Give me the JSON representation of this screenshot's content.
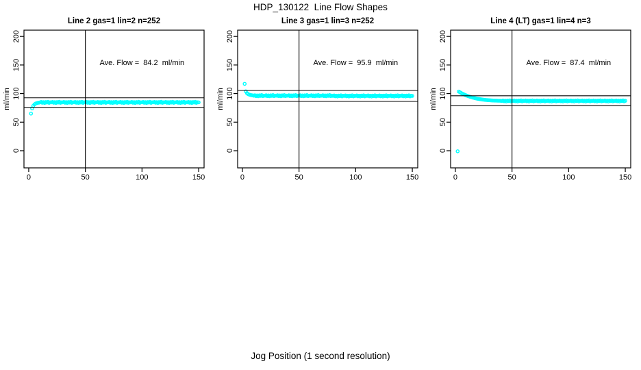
{
  "figure": {
    "title": "HDP_130122  Line Flow Shapes",
    "xlabel": "Jog Position (1 second resolution)",
    "background_color": "#FFFFFF",
    "axis_color": "#000000",
    "point_color": "#00FFFF",
    "text_color": "#000000"
  },
  "chart_data": [
    {
      "type": "scatter",
      "title": "Line 2 gas=1 lin=2 n=252",
      "ylabel": "ml/min",
      "annotation": "Ave. Flow =  84.2  ml/min",
      "ave_flow_ml_min": 84.2,
      "n_points_label": 252,
      "x_ticks": [
        0,
        50,
        100,
        150
      ],
      "y_ticks": [
        0,
        50,
        100,
        150,
        200
      ],
      "xlim": [
        -4.2,
        154.8
      ],
      "ylim": [
        -30,
        211
      ],
      "grid": false,
      "legend": false,
      "vline_x": 50,
      "hlines_y": [
        92.6,
        75.8
      ],
      "annotation_xy": [
        100,
        150
      ],
      "points": {
        "x_start": 2,
        "x_step": 1,
        "y": [
          65,
          74,
          78.5,
          81,
          82.5,
          83.3,
          83.8,
          84.1,
          84.6,
          85.4,
          83.9,
          85,
          83.6,
          85.2,
          84.3,
          85.6,
          83.8,
          84.8,
          84.6,
          85.4,
          83.9,
          85,
          83.6,
          85.2,
          84.3,
          85.6,
          83.8,
          84.8,
          84.6,
          85.4,
          83.9,
          85,
          83.6,
          85.2,
          84.3,
          85.6,
          83.8,
          84.8,
          84.6,
          85.4,
          83.9,
          85,
          83.6,
          85.2,
          84.3,
          85.6,
          83.8,
          84.8,
          84.6,
          85.4,
          83.9,
          85,
          83.6,
          85.2,
          84.3,
          85.6,
          83.8,
          84.8,
          84.6,
          85.4,
          83.9,
          85,
          83.6,
          85.2,
          84.3,
          85.6,
          83.8,
          84.8,
          84.6,
          85.4,
          83.9,
          85,
          83.6,
          85.2,
          84.3,
          85.6,
          83.8,
          84.8,
          84.6,
          85.4,
          83.9,
          85,
          83.6,
          85.2,
          84.3,
          85.6,
          83.8,
          84.8,
          84.6,
          85.4,
          83.9,
          85,
          83.6,
          85.2,
          84.3,
          85.6,
          83.8,
          84.8,
          84.6,
          85.4,
          83.9,
          85,
          83.6,
          85.2,
          84.3,
          85.6,
          83.8,
          84.8,
          84.6,
          85.4,
          83.9,
          85,
          83.6,
          85.2,
          84.3,
          85.6,
          83.8,
          84.8,
          84.6,
          85.4,
          83.9,
          85,
          83.6,
          85.2,
          84.3,
          85.6,
          83.8,
          84.8,
          84.6,
          85.4,
          83.9,
          85,
          83.6,
          85.2,
          84.3,
          85.6,
          83.8,
          84.8,
          84.6,
          85.4,
          83.9,
          85,
          83.6,
          85.2,
          84.3,
          85.6,
          83.8,
          84.8,
          84.6
        ]
      }
    },
    {
      "type": "scatter",
      "title": "Line 3 gas=1 lin=3 n=252",
      "ylabel": "ml/min",
      "annotation": "Ave. Flow =  95.9  ml/min",
      "ave_flow_ml_min": 95.9,
      "n_points_label": 252,
      "x_ticks": [
        0,
        50,
        100,
        150
      ],
      "y_ticks": [
        0,
        50,
        100,
        150,
        200
      ],
      "xlim": [
        -4.2,
        154.8
      ],
      "ylim": [
        -30,
        211
      ],
      "grid": false,
      "legend": false,
      "vline_x": 50,
      "hlines_y": [
        105.5,
        86.3
      ],
      "annotation_xy": [
        100,
        150
      ],
      "points": {
        "x_start": 2,
        "x_step": 1,
        "y": [
          117,
          104,
          100.8,
          99.2,
          98.2,
          97.6,
          97.2,
          96.9,
          96.3,
          97.1,
          95.6,
          96.7,
          95.3,
          96.9,
          96,
          97.3,
          95.5,
          96.5,
          96.3,
          97.1,
          95.6,
          96.7,
          95.3,
          96.9,
          96,
          97.3,
          95.5,
          96.5,
          96.3,
          97.1,
          95.6,
          96.7,
          95.3,
          96.9,
          96,
          97.3,
          95.5,
          96.5,
          96.3,
          97.1,
          95.6,
          96.7,
          95.3,
          96.9,
          96,
          97.3,
          95.5,
          96.5,
          96.3,
          97.1,
          95.6,
          96.7,
          95.3,
          96.9,
          96,
          97.3,
          95.5,
          96.5,
          96.3,
          97.1,
          95.6,
          96.7,
          95.3,
          96.9,
          96,
          97.3,
          95.5,
          96.5,
          96.3,
          97.1,
          95.6,
          96.7,
          95.3,
          96.9,
          96,
          97.3,
          95.5,
          96.5,
          95.9,
          96.7,
          95.2,
          96.3,
          94.9,
          96.5,
          95.6,
          96.9,
          95.1,
          96.1,
          95.9,
          96.7,
          95.2,
          96.3,
          94.9,
          96.5,
          95.6,
          96.9,
          95.1,
          96.1,
          95.9,
          96.7,
          95.2,
          96.3,
          94.9,
          96.5,
          95.6,
          96.9,
          95.1,
          96.1,
          95.9,
          96.7,
          95.2,
          96.3,
          94.9,
          96.5,
          95.6,
          96.9,
          95.1,
          96.1,
          95.9,
          96.7,
          95.2,
          96.3,
          94.9,
          96.5,
          95.6,
          96.9,
          95.1,
          96.1,
          95.9,
          96.7,
          95.2,
          96.3,
          94.9,
          96.5,
          95.6,
          96.9,
          95.1,
          96.1,
          95.9,
          96.7,
          95.2,
          96.3,
          94.9,
          96.5,
          95.6,
          96.9,
          95.1,
          96.1,
          95.9
        ]
      }
    },
    {
      "type": "scatter",
      "title": "Line 4 (LT) gas=1 lin=4 n=3",
      "ylabel": "ml/min",
      "annotation": "Ave. Flow =  87.4  ml/min",
      "ave_flow_ml_min": 87.4,
      "n_points_label": 3,
      "x_ticks": [
        0,
        50,
        100,
        150
      ],
      "y_ticks": [
        0,
        50,
        100,
        150,
        200
      ],
      "xlim": [
        -4.2,
        154.8
      ],
      "ylim": [
        -30,
        211
      ],
      "grid": false,
      "legend": false,
      "vline_x": 50,
      "hlines_y": [
        96.1,
        78.7
      ],
      "annotation_xy": [
        100,
        150
      ],
      "points": {
        "x_start": 2,
        "x_step": 1,
        "y": [
          -1,
          103.5,
          102.3,
          101.2,
          100.1,
          99.1,
          98.2,
          97.3,
          96.5,
          95.7,
          95,
          94.3,
          93.7,
          93.1,
          92.6,
          92.1,
          91.6,
          91.2,
          90.8,
          90.4,
          90.1,
          89.8,
          89.5,
          89.3,
          89,
          88.8,
          88.6,
          88.5,
          88.3,
          88.2,
          88,
          87.9,
          87.8,
          87.7,
          87.7,
          87.6,
          87.5,
          87.5,
          87.4,
          87.2,
          87.9,
          86.6,
          87.6,
          86.3,
          87.8,
          87,
          88.1,
          86.5,
          87.4,
          87.2,
          87.9,
          86.6,
          87.6,
          86.3,
          87.8,
          87,
          88.1,
          86.5,
          87.4,
          87.2,
          87.9,
          86.6,
          87.6,
          86.3,
          87.8,
          87,
          88.1,
          86.5,
          87.4,
          87.2,
          87.9,
          86.6,
          87.6,
          86.3,
          87.8,
          87,
          88.1,
          86.5,
          87.4,
          87.2,
          87.9,
          86.6,
          87.6,
          86.3,
          87.8,
          87,
          88.1,
          86.5,
          87.4,
          87.2,
          87.9,
          86.6,
          87.6,
          86.3,
          87.8,
          87,
          88.1,
          86.5,
          87.4,
          87.2,
          87.9,
          86.6,
          87.6,
          86.3,
          87.8,
          87,
          88.1,
          86.5,
          87.4,
          87.2,
          87.9,
          86.6,
          87.6,
          86.3,
          87.8,
          87,
          88.1,
          86.5,
          87.4,
          87.2,
          87.9,
          86.6,
          87.6,
          86.3,
          87.8,
          87,
          88.1,
          86.5,
          87.4,
          87.2,
          87.9,
          86.6,
          87.6,
          86.3,
          87.8,
          87,
          88.1,
          86.5,
          87.4,
          87.2,
          87.9,
          86.6,
          87.6,
          86.3,
          87.8,
          87,
          88.1,
          86.5,
          87.4
        ]
      }
    }
  ]
}
